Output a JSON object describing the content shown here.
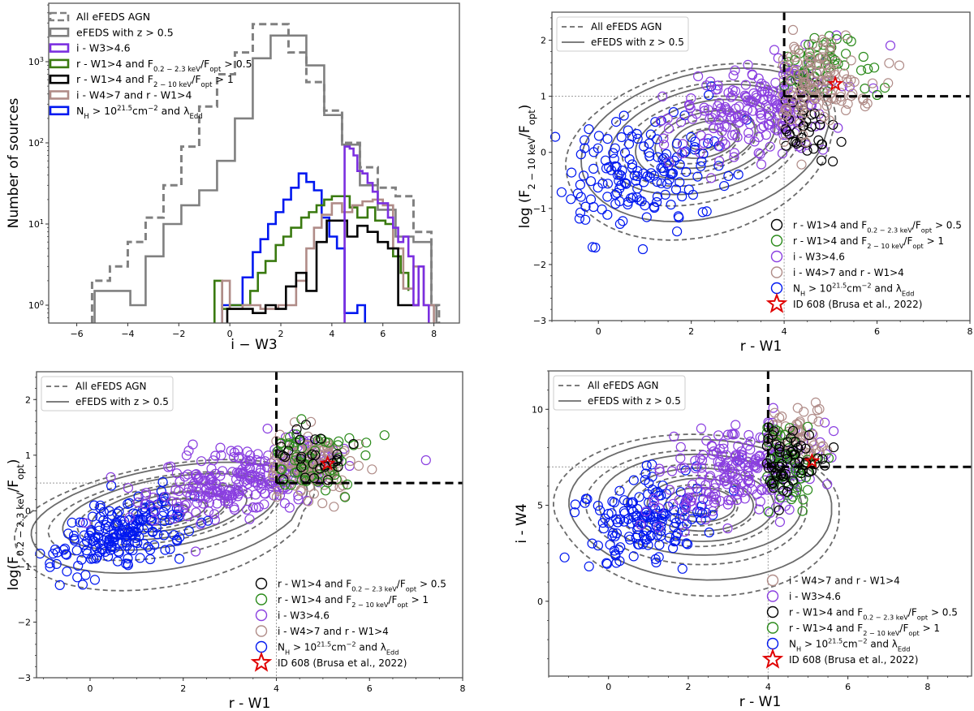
{
  "chart_data": [
    {
      "id": "hist",
      "type": "histogram-step",
      "title": "",
      "xlabel": "i − W3",
      "ylabel": "Number of sources",
      "xlim": [
        -7.1,
        9.0
      ],
      "ylim_log10": [
        -0.22,
        3.72
      ],
      "yscale": "log",
      "xticks": [
        -6,
        -4,
        -2,
        0,
        2,
        4,
        6,
        8
      ],
      "xtick_labels": [
        "−6",
        "−4",
        "−2",
        "0",
        "2",
        "4",
        "6",
        "8"
      ],
      "yticks_log10": [
        0,
        1,
        2,
        3
      ],
      "ytick_labels": [
        "10⁰",
        "10¹",
        "10²",
        "10³"
      ],
      "legend_position": "top-left",
      "series": [
        {
          "name": "All eFEDS AGN",
          "color": "#808080",
          "style": "dashed",
          "bin_edges": [
            -5.4,
            -4.7,
            -4.0,
            -3.3,
            -2.6,
            -1.9,
            -1.2,
            -0.5,
            0.2,
            0.9,
            1.6,
            2.3,
            3.0,
            3.7,
            4.4,
            5.1,
            5.8,
            6.5,
            7.2,
            7.9,
            8.2
          ],
          "counts": [
            2,
            3,
            6,
            12,
            30,
            90,
            280,
            700,
            1300,
            2900,
            2900,
            1300,
            560,
            250,
            100,
            50,
            28,
            22,
            8,
            1
          ]
        },
        {
          "name": "eFEDS with z > 0.5",
          "color": "#808080",
          "style": "solid",
          "bin_edges": [
            -5.3,
            -4.6,
            -3.9,
            -3.3,
            -2.6,
            -1.9,
            -1.2,
            -0.5,
            0.2,
            0.9,
            1.6,
            2.3,
            3.0,
            3.7,
            4.4,
            5.1,
            5.8,
            6.5,
            7.2,
            7.9,
            8.1
          ],
          "counts": [
            1.5,
            1.5,
            1,
            4,
            10,
            17,
            26,
            60,
            200,
            1100,
            2100,
            2100,
            900,
            220,
            95,
            30,
            15,
            7,
            6,
            1
          ]
        },
        {
          "name": "i - W3>4.6",
          "color": "#7b2fe0",
          "style": "solid",
          "bin_edges": [
            4.5,
            4.7,
            4.85,
            5.0,
            5.2,
            5.4,
            5.6,
            5.8,
            6.0,
            6.2,
            6.4,
            6.6,
            6.8,
            7.0,
            7.2,
            7.4,
            7.6,
            7.8
          ],
          "counts": [
            90,
            85,
            70,
            45,
            42,
            32,
            25,
            18,
            18,
            12,
            9,
            6,
            7,
            4,
            1,
            3,
            1
          ]
        },
        {
          "name": "r - W1>4 and F0.2-2.3keV/Fopt > 0.5",
          "color": "#3a7a10",
          "style": "solid",
          "bin_edges": [
            -0.6,
            -0.3,
            0.0,
            0.4,
            0.8,
            1.1,
            1.4,
            1.8,
            2.1,
            2.4,
            2.8,
            3.1,
            3.4,
            3.7,
            4.0,
            4.3,
            4.7,
            5.0,
            5.4,
            5.7,
            6.1,
            6.4,
            6.7,
            7.0
          ],
          "counts": [
            2,
            0.9,
            1,
            1,
            1.5,
            2.5,
            3.5,
            5.5,
            7,
            9,
            12,
            14,
            17,
            20,
            22,
            22,
            16,
            12,
            16,
            11,
            10,
            4,
            2.5,
            1.5
          ]
        },
        {
          "name": "r - W1>4 and F2-10keV/Fopt > 1",
          "color": "#000000",
          "style": "solid",
          "bin_edges": [
            -0.1,
            0.4,
            0.9,
            1.4,
            1.8,
            2.2,
            2.6,
            3.0,
            3.4,
            3.8,
            4.2,
            4.6,
            5.0,
            5.4,
            5.8,
            6.2,
            6.6,
            7.0,
            7.4
          ],
          "counts": [
            0.9,
            0.9,
            0.8,
            1,
            0.9,
            1.7,
            2.5,
            1.5,
            6,
            11,
            11,
            7,
            9.5,
            8,
            6,
            5,
            1,
            1,
            1.2
          ]
        },
        {
          "name": "i - W4>7 and r - W1>4",
          "color": "#b08c88",
          "style": "solid",
          "bin_edges": [
            -0.3,
            0.0,
            0.5,
            1.2,
            1.9,
            2.6,
            3.0,
            3.3,
            3.6,
            4.0,
            4.4,
            4.8,
            5.2,
            5.6,
            6.0,
            6.4,
            6.8,
            7.2,
            7.6,
            8.0
          ],
          "counts": [
            2,
            0.9,
            1,
            0.9,
            1,
            2,
            5,
            9,
            13,
            18,
            14,
            17,
            19,
            20,
            17,
            5,
            1.6,
            3,
            1
          ]
        },
        {
          "name": "N_H > 10^21.5 cm^-2 and λ_Edd",
          "color": "#0018f0",
          "style": "solid",
          "bin_edges": [
            -0.3,
            0.5,
            0.9,
            1.2,
            1.5,
            1.8,
            2.1,
            2.4,
            2.7,
            3.0,
            3.3,
            3.6,
            3.9,
            4.2,
            4.5,
            5.0,
            5.3
          ],
          "counts": [
            1,
            2.2,
            4.5,
            6.5,
            10,
            14,
            20,
            28,
            42,
            33,
            26,
            12,
            7,
            5,
            0.8,
            1
          ]
        }
      ]
    },
    {
      "id": "scatter_tr",
      "type": "scatter",
      "xlabel": "r - W1",
      "ylabel": "log(F_{2 - 10 keV}/F_opt)",
      "xlim": [
        -1.0,
        8.0
      ],
      "ylim": [
        -3.0,
        2.5
      ],
      "xticks": [
        0,
        2,
        4,
        6,
        8
      ],
      "yticks": [
        -3,
        -2,
        -1,
        0,
        1,
        2
      ],
      "threshold": {
        "x": 4,
        "y": 1
      },
      "legend_position": "top-left / lower-right",
      "contour_legend": [
        "All eFEDS AGN",
        "eFEDS with z > 0.5"
      ],
      "marker_legend": [
        {
          "label": "r - W1>4 and F0.2-2.3keV/Fopt > 0.5",
          "color": "#000000"
        },
        {
          "label": "r - W1>4 and F2-10keV/Fopt > 1",
          "color": "#2a8a1a"
        },
        {
          "label": "i - W3>4.6",
          "color": "#8a3fe0"
        },
        {
          "label": "i - W4>7 and r - W1>4",
          "color": "#b08c88"
        },
        {
          "label": "N_H > 10^21.5 cm^-2 and λ_Edd",
          "color": "#0018f0"
        },
        {
          "label": "ID 608 (Brusa et al., 2022)",
          "color": "#e00000",
          "marker": "star"
        }
      ],
      "star": {
        "x": 5.1,
        "y": 1.22
      }
    },
    {
      "id": "scatter_bl",
      "type": "scatter",
      "xlabel": "r - W1",
      "ylabel": "log(F_{0.2 - 2.3 keV}/F_opt)",
      "xlim": [
        -1.15,
        8.0
      ],
      "ylim": [
        -3.0,
        2.5
      ],
      "xticks": [
        0,
        2,
        4,
        6,
        8
      ],
      "yticks": [
        -3,
        -2,
        -1,
        0,
        1,
        2
      ],
      "threshold": {
        "x": 4,
        "y": 0.5
      },
      "contour_legend": [
        "All eFEDS AGN",
        "eFEDS with z > 0.5"
      ],
      "marker_legend": [
        {
          "label": "r - W1>4 and F0.2-2.3keV/Fopt > 0.5",
          "color": "#000000"
        },
        {
          "label": "r - W1>4 and F2-10keV/Fopt > 1",
          "color": "#2a8a1a"
        },
        {
          "label": "i - W3>4.6",
          "color": "#8a3fe0"
        },
        {
          "label": "i - W4>7 and r - W1>4",
          "color": "#b08c88"
        },
        {
          "label": "N_H > 10^21.5 cm^-2 and λ_Edd",
          "color": "#0018f0"
        },
        {
          "label": "ID 608 (Brusa et al., 2022)",
          "color": "#e00000",
          "marker": "star"
        }
      ],
      "star": {
        "x": 5.1,
        "y": 0.85
      }
    },
    {
      "id": "scatter_br",
      "type": "scatter",
      "xlabel": "r - W1",
      "ylabel": "i - W4",
      "xlim": [
        -1.5,
        9.1
      ],
      "ylim": [
        -3.9,
        12.0
      ],
      "xticks": [
        0,
        2,
        4,
        6,
        8
      ],
      "yticks": [
        0,
        5,
        10
      ],
      "threshold": {
        "x": 4,
        "y": 7
      },
      "contour_legend": [
        "All eFEDS AGN",
        "eFEDS with z > 0.5"
      ],
      "marker_legend": [
        {
          "label": "i - W4>7 and r - W1>4",
          "color": "#b08c88"
        },
        {
          "label": "i - W3>4.6",
          "color": "#8a3fe0"
        },
        {
          "label": "r - W1>4 and F0.2-2.3keV/Fopt > 0.5",
          "color": "#000000"
        },
        {
          "label": "r - W1>4 and F2-10keV/Fopt > 1",
          "color": "#2a8a1a"
        },
        {
          "label": "N_H > 10^21.5 cm^-2 and λ_Edd",
          "color": "#0018f0"
        },
        {
          "label": "ID 608 (Brusa et al., 2022)",
          "color": "#e00000",
          "marker": "star"
        }
      ],
      "star": {
        "x": 5.1,
        "y": 7.3
      }
    }
  ],
  "texts": {
    "hist_legend": [
      "All eFEDS AGN",
      "eFEDS with z > 0.5",
      "i - W3>4.6",
      "r - W1>4 and F",
      "r - W1>4 and F",
      "i - W4>7 and r - W1>4",
      "N"
    ],
    "hist_xlabel": "i − W3",
    "hist_ylabel": "Number of sources",
    "contour_all": "All eFEDS AGN",
    "contour_z": "eFEDS with z > 0.5",
    "rW1": "r - W1",
    "iW4": "i - W4",
    "m_soft": "r - W1>4 and F",
    "m_hard": "r - W1>4 and F",
    "m_iw3": "i - W3>4.6",
    "m_iw4": "i - W4>7 and r - W1>4",
    "m_nh": "N",
    "m_star": "ID 608 (Brusa et al., 2022)"
  }
}
